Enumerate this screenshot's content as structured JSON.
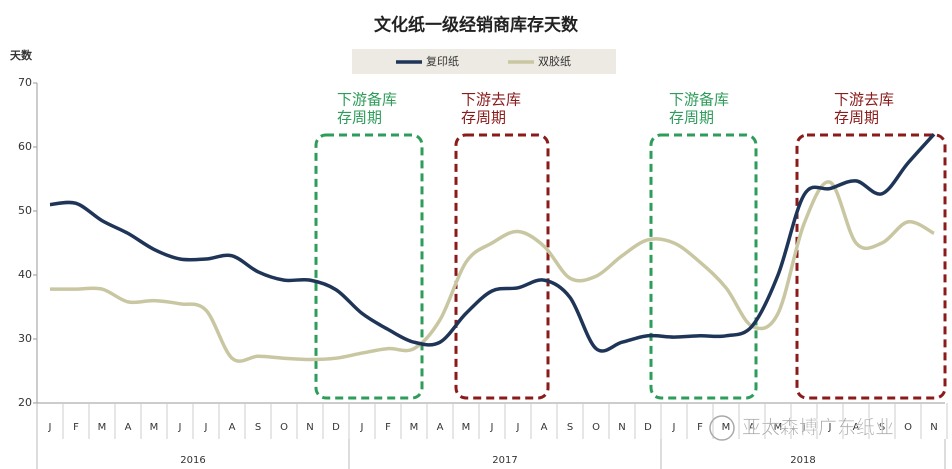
{
  "chart_data": {
    "type": "line",
    "title": "文化纸一级经销商库存天数",
    "y_label": "天数",
    "categories": [
      "J",
      "F",
      "M",
      "A",
      "M",
      "J",
      "J",
      "A",
      "S",
      "O",
      "N",
      "D",
      "J",
      "F",
      "M",
      "A",
      "M",
      "J",
      "J",
      "A",
      "S",
      "O",
      "N",
      "D",
      "J",
      "F",
      "M",
      "A",
      "M",
      "J",
      "J",
      "A",
      "S",
      "O",
      "N"
    ],
    "year_groups": [
      {
        "label": "2016",
        "count": 12
      },
      {
        "label": "2017",
        "count": 12
      },
      {
        "label": "2018",
        "count": 11
      }
    ],
    "series": [
      {
        "name": "复印纸",
        "color": "#1f3558",
        "values": [
          51,
          51.2,
          48.5,
          46.5,
          44,
          42.5,
          42.5,
          43,
          40.5,
          39.2,
          39.2,
          37.7,
          34,
          31.5,
          29.5,
          29.5,
          34,
          37.5,
          38,
          39.2,
          36.5,
          28.5,
          29.5,
          30.5,
          30.3,
          30.5,
          30.5,
          32,
          40,
          52.5,
          53.5,
          54.7,
          52.7,
          57.5,
          62
        ]
      },
      {
        "name": "双胶纸",
        "color": "#c9c6a2",
        "values": [
          37.8,
          37.8,
          37.8,
          35.8,
          36,
          35.5,
          34.5,
          27,
          27.3,
          27,
          26.8,
          27,
          27.8,
          28.5,
          28.5,
          33,
          42,
          45,
          46.8,
          44.5,
          39.5,
          39.8,
          43,
          45.5,
          45,
          42,
          38,
          32,
          34,
          48,
          54.5,
          45,
          45,
          48.3,
          46.5
        ]
      }
    ],
    "ylim": [
      20,
      70
    ],
    "yticks": [
      20,
      30,
      40,
      50,
      60,
      70
    ],
    "annotations": [
      {
        "lines": [
          "下游备库",
          "存周期"
        ],
        "color": "#2e9c5a"
      },
      {
        "lines": [
          "下游去库",
          "存周期"
        ],
        "color": "#8b1a1a"
      },
      {
        "lines": [
          "下游备库",
          "存周期"
        ],
        "color": "#2e9c5a"
      },
      {
        "lines": [
          "下游去库",
          "存周期"
        ],
        "color": "#8b1a1a"
      }
    ],
    "watermark": "亚太森博广东纸业"
  }
}
